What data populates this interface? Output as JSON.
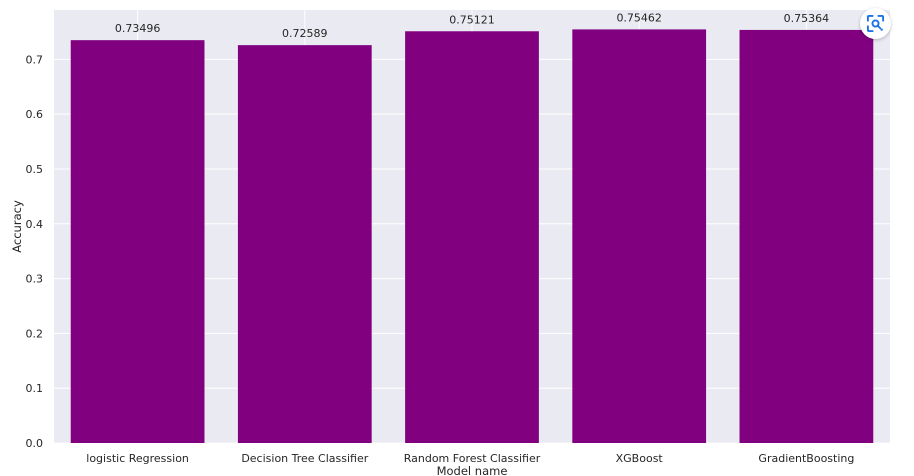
{
  "chart_data": {
    "type": "bar",
    "categories": [
      "logistic Regression",
      "Decision Tree Classifier",
      "Random Forest Classifier",
      "XGBoost",
      "GradientBoosting"
    ],
    "values": [
      0.73496,
      0.72589,
      0.75121,
      0.75462,
      0.75364
    ],
    "data_labels": [
      "0.73496",
      "0.72589",
      "0.75121",
      "0.75462",
      "0.75364"
    ],
    "xlabel": "Model name",
    "ylabel": "Accuracy",
    "ylim": [
      0,
      0.79
    ],
    "yticks": [
      "0.0",
      "0.1",
      "0.2",
      "0.3",
      "0.4",
      "0.5",
      "0.6",
      "0.7"
    ],
    "grid": true,
    "bar_color": "#800080",
    "plot_background": "#eaeaf2",
    "grid_color": "#ffffff"
  },
  "overlay": {
    "lens_icon": "visual-search-icon",
    "accent_color": "#1a73e8"
  }
}
